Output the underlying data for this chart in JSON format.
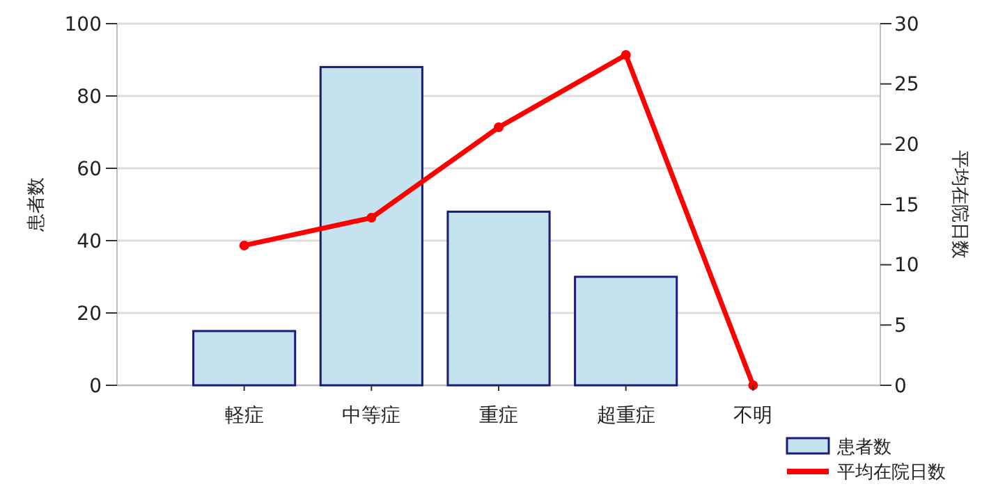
{
  "chart_data": {
    "type": "bar",
    "ylabel": "患者数",
    "y2label": "平均在院日数",
    "categories": [
      "軽症",
      "中等症",
      "重症",
      "超重症",
      "不明"
    ],
    "series": [
      {
        "name": "患者数",
        "color": "#c5e3ee",
        "values": [
          15,
          88,
          48,
          30,
          0
        ]
      },
      {
        "name": "平均在院日数",
        "type": "line",
        "axis": "y2",
        "color": "#ff0000",
        "values": [
          11.6,
          13.9,
          21.4,
          27.4,
          0
        ]
      }
    ],
    "ylim": [
      0,
      100
    ],
    "yticks": [
      0,
      20,
      40,
      60,
      80,
      100
    ],
    "y2lim": [
      0,
      30
    ],
    "y2ticks": [
      0,
      5,
      10,
      15,
      20,
      25,
      30
    ],
    "grid": "y",
    "legend": "bottom right",
    "marker": "circle",
    "line_style": "solid"
  }
}
